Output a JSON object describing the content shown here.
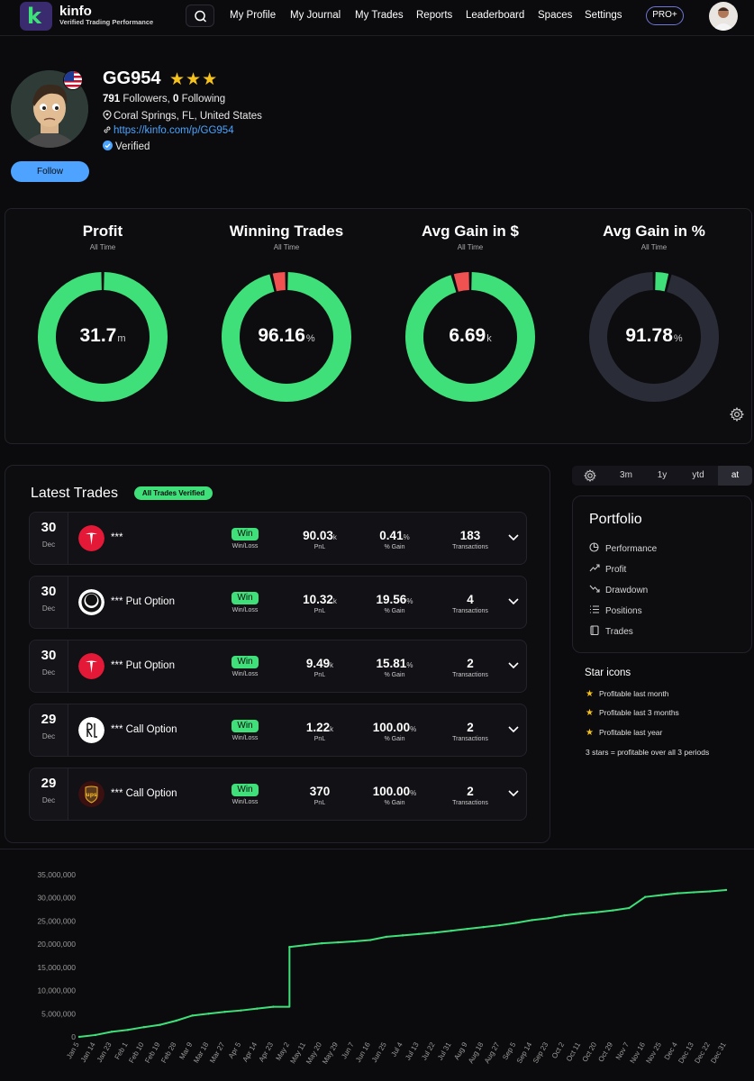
{
  "nav": {
    "brand": "kinfo",
    "tagline": "Verified Trading Performance",
    "links": [
      "My Profile",
      "My Journal",
      "My Trades",
      "Reports",
      "Leaderboard",
      "Spaces",
      "Settings"
    ],
    "pro_label": "PRO+"
  },
  "profile": {
    "username": "GG954",
    "stars": "★★★",
    "followers_count": "791",
    "followers_label": " Followers, ",
    "following_count": "0",
    "following_label": " Following",
    "location": "Coral Springs, FL, United States",
    "url": "https://kinfo.com/p/GG954",
    "verified": "Verified",
    "follow_label": "Follow"
  },
  "stats": [
    {
      "title": "Profit",
      "sub": "All Time",
      "value": "31.7",
      "unit": "m",
      "green_fraction": 1.0,
      "red_fraction": 0.0
    },
    {
      "title": "Winning Trades",
      "sub": "All Time",
      "value": "96.16",
      "unit": "%",
      "green_fraction": 0.9616,
      "red_fraction": 0.0384
    },
    {
      "title": "Avg Gain in $",
      "sub": "All Time",
      "value": "6.69",
      "unit": "k",
      "green_fraction": 0.955,
      "red_fraction": 0.045
    },
    {
      "title": "Avg Gain in %",
      "sub": "All Time",
      "value": "91.78",
      "unit": "%",
      "green_fraction": 0.04,
      "red_fraction": 0.0
    }
  ],
  "colors": {
    "green": "#3fe07a",
    "red": "#f05252",
    "track": "#2a2d38",
    "star": "#f6c21d",
    "link": "#4aa4ff"
  },
  "trades": {
    "title": "Latest Trades",
    "verified_badge": "All Trades Verified",
    "rows": [
      {
        "day": "30",
        "month": "Dec",
        "logo": "tesla-logo",
        "name": "***",
        "result": "Win",
        "result_sub": "Win/Loss",
        "pnl": "90.03",
        "pnl_unit": "k",
        "pnl_sub": "PnL",
        "gain": "0.41",
        "gain_unit": "%",
        "gain_sub": "% Gain",
        "tx": "183",
        "tx_sub": "Transactions"
      },
      {
        "day": "30",
        "month": "Dec",
        "logo": "circle-logo",
        "name": "*** Put Option",
        "result": "Win",
        "result_sub": "Win/Loss",
        "pnl": "10.32",
        "pnl_unit": "k",
        "pnl_sub": "PnL",
        "gain": "19.56",
        "gain_unit": "%",
        "gain_sub": "% Gain",
        "tx": "4",
        "tx_sub": "Transactions"
      },
      {
        "day": "30",
        "month": "Dec",
        "logo": "tesla-logo",
        "name": "*** Put Option",
        "result": "Win",
        "result_sub": "Win/Loss",
        "pnl": "9.49",
        "pnl_unit": "k",
        "pnl_sub": "PnL",
        "gain": "15.81",
        "gain_unit": "%",
        "gain_sub": "% Gain",
        "tx": "2",
        "tx_sub": "Transactions"
      },
      {
        "day": "29",
        "month": "Dec",
        "logo": "rl-logo",
        "name": "*** Call Option",
        "result": "Win",
        "result_sub": "Win/Loss",
        "pnl": "1.22",
        "pnl_unit": "k",
        "pnl_sub": "PnL",
        "gain": "100.00",
        "gain_unit": "%",
        "gain_sub": "% Gain",
        "tx": "2",
        "tx_sub": "Transactions"
      },
      {
        "day": "29",
        "month": "Dec",
        "logo": "ups-logo",
        "name": "*** Call Option",
        "result": "Win",
        "result_sub": "Win/Loss",
        "pnl": "370",
        "pnl_unit": "",
        "pnl_sub": "PnL",
        "gain": "100.00",
        "gain_unit": "%",
        "gain_sub": "% Gain",
        "tx": "2",
        "tx_sub": "Transactions"
      }
    ]
  },
  "timeframes": {
    "items": [
      "3m",
      "1y",
      "ytd",
      "at"
    ],
    "active": "at"
  },
  "portfolio": {
    "title": "Portfolio",
    "items": [
      {
        "icon": "pie-chart-icon",
        "label": "Performance"
      },
      {
        "icon": "trend-up-icon",
        "label": "Profit"
      },
      {
        "icon": "trend-down-icon",
        "label": "Drawdown"
      },
      {
        "icon": "list-icon",
        "label": "Positions"
      },
      {
        "icon": "book-icon",
        "label": "Trades"
      }
    ]
  },
  "star_icons": {
    "title": "Star icons",
    "items": [
      "Profitable last month",
      "Profitable last 3 months",
      "Profitable last year"
    ],
    "note": "3 stars = profitable over all 3 periods"
  },
  "chart_data": {
    "type": "line",
    "title": "",
    "xlabel": "",
    "ylabel": "",
    "ylim": [
      0,
      35000000
    ],
    "yticks": [
      0,
      5000000,
      10000000,
      15000000,
      20000000,
      25000000,
      30000000,
      35000000
    ],
    "ytick_labels": [
      "0",
      "5,000,000",
      "10,000,000",
      "15,000,000",
      "20,000,000",
      "25,000,000",
      "30,000,000",
      "35,000,000"
    ],
    "x": [
      "Jan 5",
      "Jan 14",
      "Jan 23",
      "Feb 1",
      "Feb 10",
      "Feb 19",
      "Feb 28",
      "Mar 9",
      "Mar 18",
      "Mar 27",
      "Apr 5",
      "Apr 14",
      "Apr 23",
      "May 2",
      "May 11",
      "May 20",
      "May 29",
      "Jun 7",
      "Jun 16",
      "Jun 25",
      "Jul 4",
      "Jul 13",
      "Jul 22",
      "Jul 31",
      "Aug 9",
      "Aug 18",
      "Aug 27",
      "Sep 5",
      "Sep 14",
      "Sep 23",
      "Oct 2",
      "Oct 11",
      "Oct 20",
      "Oct 29",
      "Nov 7",
      "Nov 16",
      "Nov 25",
      "Dec 4",
      "Dec 13",
      "Dec 22",
      "Dec 31"
    ],
    "series": [
      {
        "values": [
          0,
          400000,
          1100000,
          1500000,
          2100000,
          2600000,
          3500000,
          4600000,
          5000000,
          5400000,
          5700000,
          6100000,
          6500000,
          19400000,
          19800000,
          20200000,
          20400000,
          20600000,
          20900000,
          21600000,
          21900000,
          22200000,
          22500000,
          22900000,
          23300000,
          23700000,
          24100000,
          24600000,
          25200000,
          25600000,
          26200000,
          26600000,
          26900000,
          27300000,
          27800000,
          30200000,
          30600000,
          31000000,
          31200000,
          31400000,
          31700000
        ]
      }
    ],
    "grid": false
  }
}
